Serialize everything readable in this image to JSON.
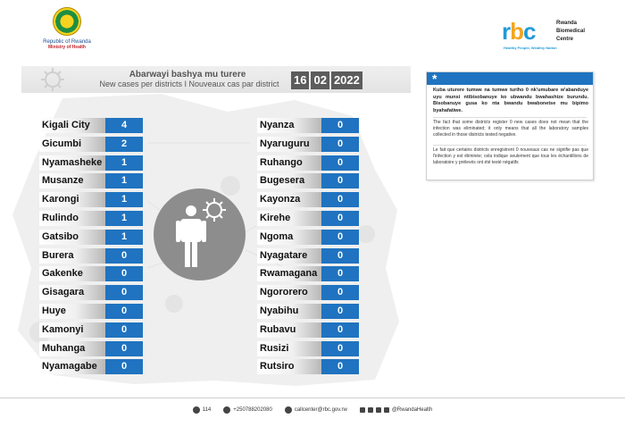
{
  "header": {
    "gov_line1": "Republic of Rwanda",
    "gov_line2": "Ministry of Health",
    "rbc_word": "rbc",
    "rbc_name_1": "Rwanda",
    "rbc_name_2": "Biomedical",
    "rbc_name_3": "Centre",
    "rbc_tagline": "Healthy People, Wealthy Nation"
  },
  "title": {
    "kinyarwanda": "Abarwayi bashya mu turere",
    "en_fr": "New cases per districts  I  Nouveaux cas par district"
  },
  "date": {
    "day": "16",
    "month": "02",
    "year": "2022"
  },
  "districts_left": [
    {
      "name": "Kigali City",
      "cases": "4"
    },
    {
      "name": "Gicumbi",
      "cases": "2"
    },
    {
      "name": "Nyamasheke",
      "cases": "1"
    },
    {
      "name": "Musanze",
      "cases": "1"
    },
    {
      "name": "Karongi",
      "cases": "1"
    },
    {
      "name": "Rulindo",
      "cases": "1"
    },
    {
      "name": "Gatsibo",
      "cases": "1"
    },
    {
      "name": "Burera",
      "cases": "0"
    },
    {
      "name": "Gakenke",
      "cases": "0"
    },
    {
      "name": "Gisagara",
      "cases": "0"
    },
    {
      "name": "Huye",
      "cases": "0"
    },
    {
      "name": "Kamonyi",
      "cases": "0"
    },
    {
      "name": "Muhanga",
      "cases": "0"
    },
    {
      "name": "Nyamagabe",
      "cases": "0"
    }
  ],
  "districts_right": [
    {
      "name": "Nyanza",
      "cases": "0"
    },
    {
      "name": "Nyaruguru",
      "cases": "0"
    },
    {
      "name": "Ruhango",
      "cases": "0"
    },
    {
      "name": "Bugesera",
      "cases": "0"
    },
    {
      "name": "Kayonza",
      "cases": "0"
    },
    {
      "name": "Kirehe",
      "cases": "0"
    },
    {
      "name": "Ngoma",
      "cases": "0"
    },
    {
      "name": "Nyagatare",
      "cases": "0"
    },
    {
      "name": "Rwamagana",
      "cases": "0"
    },
    {
      "name": "Ngororero",
      "cases": "0"
    },
    {
      "name": "Nyabihu",
      "cases": "0"
    },
    {
      "name": "Rubavu",
      "cases": "0"
    },
    {
      "name": "Rusizi",
      "cases": "0"
    },
    {
      "name": "Rutsiro",
      "cases": "0"
    }
  ],
  "note": {
    "star": "*",
    "kinyarwanda": "Kuba uturere tumwe na tumwe turiho 0 nk'umubare w'abanduye uyu munsi ntibisobanuye ko ubwandu bwahashize burundu. Bisobanuye gusa ko nta bwandu bwabonetse mu bipimo byahafatiwe.",
    "english": "The fact that some districts register 0 new cases does not mean that the infection was eliminated; it only means that all the laboratory samples collected in those districts tested negative.",
    "french": "Le fait que certains districts enregistrent 0 nouveaux cas ne signifie pas que l'infection y est éliminée; cela indique seulement que tous les échantillons de laboratoire y prélevés ont été testé négatifs"
  },
  "footer": {
    "hotline": "114",
    "phone": "+250788202080",
    "email": "callcenter@rbc.gov.rw",
    "social": "@RwandaHealth"
  },
  "colors": {
    "value_box": "#1f73c0",
    "date_box": "#5c5c5c",
    "circle": "#8d8d8d"
  }
}
